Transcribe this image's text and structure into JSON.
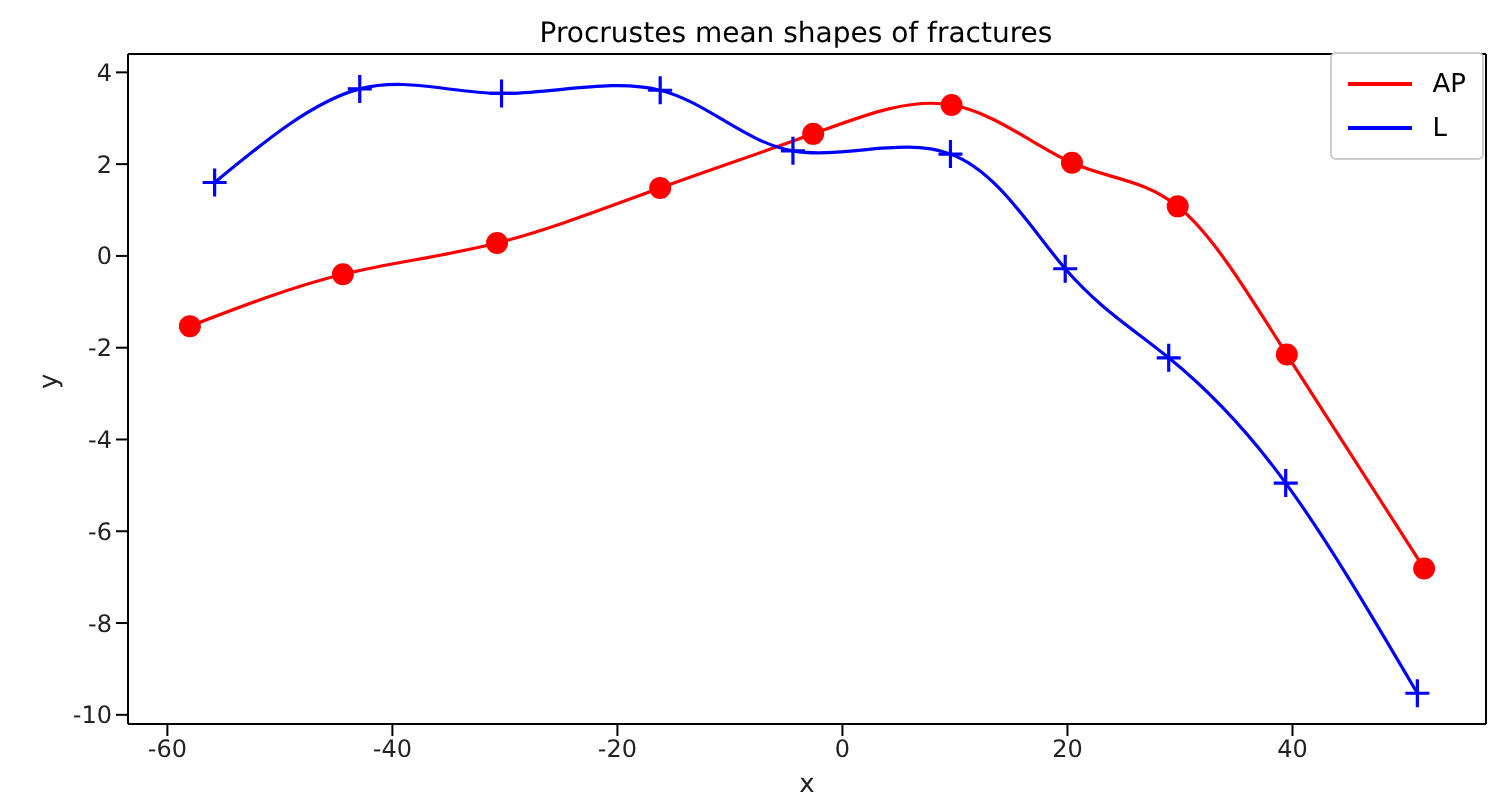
{
  "chart_data": {
    "type": "line",
    "title": "Procrustes mean shapes of fractures",
    "xlabel": "x",
    "ylabel": "y",
    "xlim": [
      -63.5,
      57.2
    ],
    "xticks": [
      -60,
      -40,
      -20,
      0,
      20,
      40
    ],
    "ylim": [
      -10.2,
      4.4
    ],
    "yticks": [
      -10,
      -8,
      -6,
      -4,
      -2,
      0,
      2,
      4
    ],
    "grid": false,
    "legend": "top right",
    "line_style": "solid",
    "series": [
      {
        "name": "AP",
        "color": "#ff0000",
        "marker": "circle",
        "x": [
          -58.0,
          -44.4,
          -30.7,
          -16.2,
          -2.6,
          9.7,
          20.4,
          29.8,
          39.5,
          51.7
        ],
        "values": [
          -1.53,
          -0.4,
          0.28,
          1.48,
          2.66,
          3.29,
          2.03,
          1.08,
          -2.15,
          -6.81
        ]
      },
      {
        "name": "L",
        "color": "#0000ff",
        "marker": "cross",
        "x": [
          -55.8,
          -42.9,
          -30.3,
          -16.2,
          -4.4,
          9.6,
          19.8,
          29.0,
          39.4,
          51.1
        ],
        "values": [
          1.6,
          3.64,
          3.54,
          3.61,
          2.29,
          2.22,
          -0.28,
          -2.22,
          -4.95,
          -9.53
        ]
      }
    ]
  }
}
